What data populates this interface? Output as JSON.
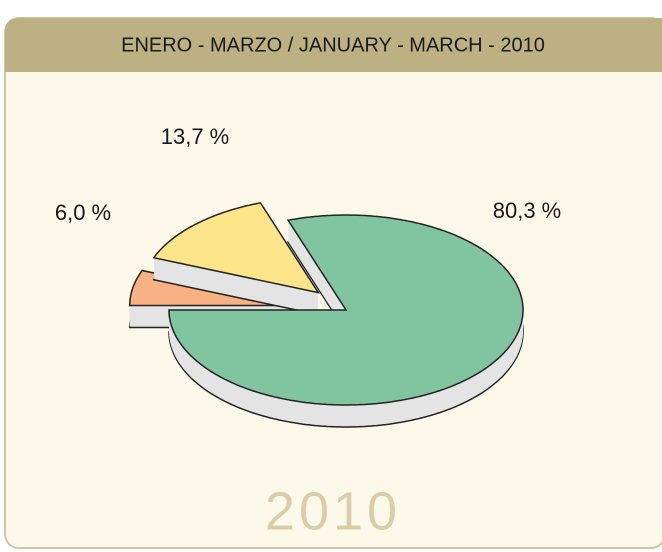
{
  "chart_data": {
    "type": "pie3d",
    "title": "ENERO - MARZO / JANUARY - MARCH - 2010",
    "annotation": "2010",
    "categories": [
      null,
      null,
      null
    ],
    "values": [
      80.3,
      13.7,
      6.0
    ],
    "value_labels": [
      "80,3 %",
      "13,7 %",
      "6,0 %"
    ],
    "colors": [
      "#80c4a0",
      "#fde68a",
      "#f7b183"
    ],
    "explode": [
      0,
      0.25,
      0.25
    ]
  }
}
